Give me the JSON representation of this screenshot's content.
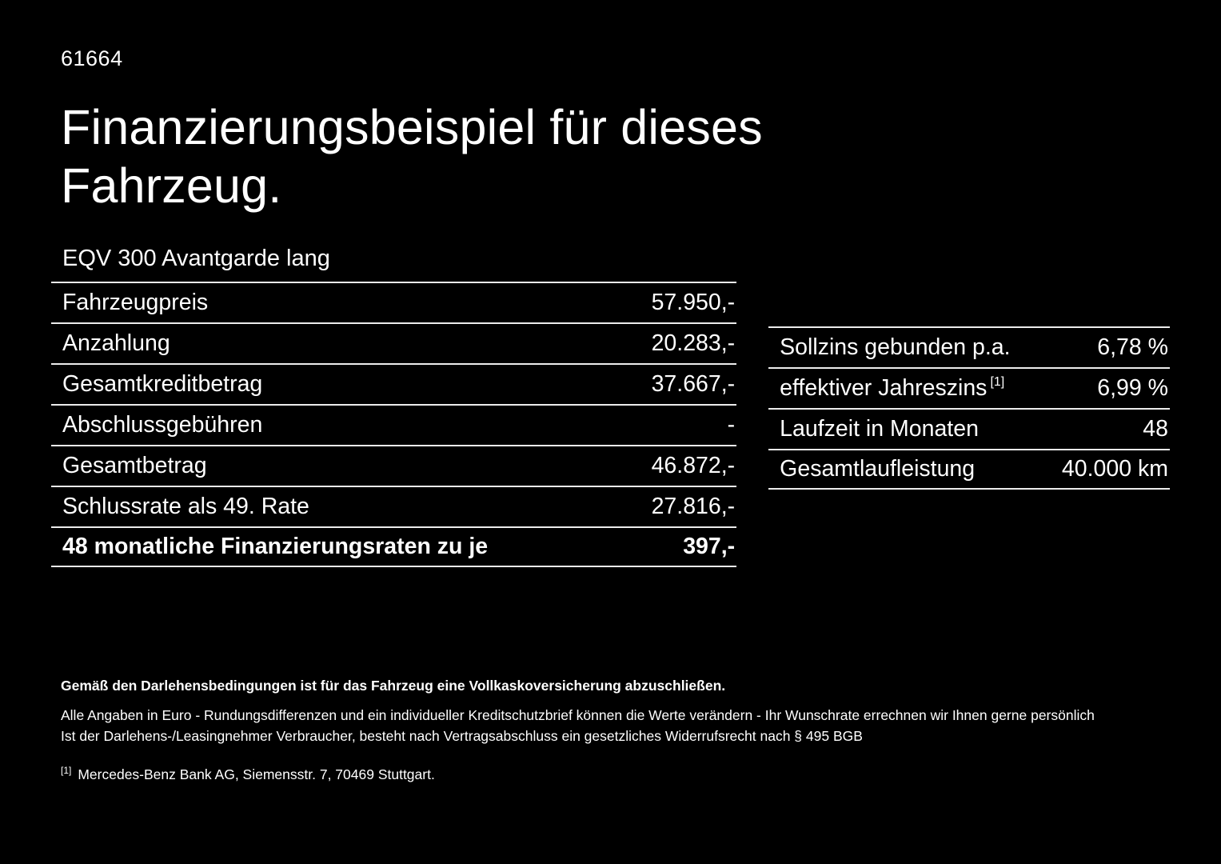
{
  "doc": {
    "ref_number": "61664",
    "title": "Finanzierungsbeispiel für dieses Fahrzeug.",
    "vehicle_model": "EQV 300 Avantgarde lang"
  },
  "finance_table": {
    "rows": [
      {
        "label": "Fahrzeugpreis",
        "value": "57.950,-"
      },
      {
        "label": "Anzahlung",
        "value": "20.283,-"
      },
      {
        "label": "Gesamtkreditbetrag",
        "value": "37.667,-"
      },
      {
        "label": "Abschlussgebühren",
        "value": "-"
      },
      {
        "label": "Gesamtbetrag",
        "value": "46.872,-"
      },
      {
        "label": "Schlussrate als 49. Rate",
        "value": "27.816,-"
      },
      {
        "label": "48 monatliche Finanzierungsraten zu je",
        "value": "397,-"
      }
    ]
  },
  "conditions_table": {
    "rows": [
      {
        "label": "Sollzins gebunden p.a.",
        "value": "6,78 %"
      },
      {
        "label": "effektiver Jahreszins",
        "sup": "[1]",
        "value": "6,99 %"
      },
      {
        "label": "Laufzeit in Monaten",
        "value": "48"
      },
      {
        "label": "Gesamtlaufleistung",
        "value": "40.000 km"
      }
    ]
  },
  "fine_print": {
    "line1": "Gemäß den Darlehensbedingungen ist für das Fahrzeug eine Vollkaskoversicherung abzuschließen.",
    "line2": "Alle Angaben in Euro - Rundungsdifferenzen und ein individueller Kreditschutzbrief können die Werte verändern - Ihr Wunschrate errechnen wir Ihnen gerne persönlich",
    "line3": "Ist der Darlehens-/Leasingnehmer Verbraucher, besteht nach Vertragsabschluss ein gesetzliches Widerrufsrecht nach § 495 BGB",
    "footnote_marker": "[1]",
    "footnote_text": "Mercedes-Benz Bank AG, Siemensstr. 7, 70469 Stuttgart."
  },
  "colors": {
    "background": "#000000",
    "text": "#ffffff",
    "divider": "#ececec"
  }
}
